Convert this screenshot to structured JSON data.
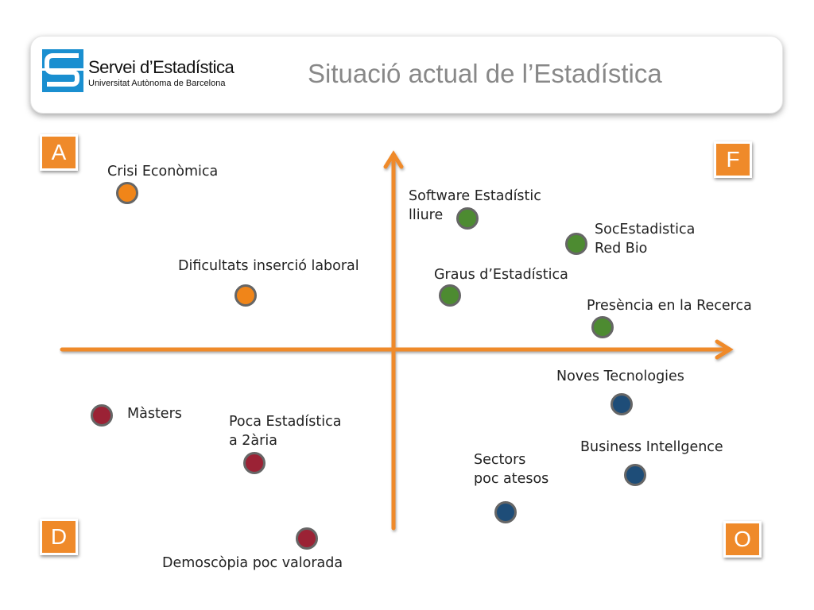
{
  "header": {
    "logo_title": "Servei d’Estadística",
    "logo_subtitle": "Universitat Autònoma de Barcelona",
    "title": "Situació actual de l’Estadística"
  },
  "quadrants": {
    "top_left": "A",
    "top_right": "F",
    "bottom_left": "D",
    "bottom_right": "O"
  },
  "items": {
    "crisi": "Crisi Econòmica",
    "dificultats": "Dificultats inserció laboral",
    "software_l1": "Software Estadístic",
    "software_l2": "lliure",
    "socest_l1": "SocEstadistica",
    "socest_l2": "Red Bio",
    "graus": "Graus d’Estadística",
    "presencia": "Presència en la Recerca",
    "noves": "Noves Tecnologies",
    "business": "Business Intellgence",
    "sectors_l1": "Sectors",
    "sectors_l2": "poc atesos",
    "masters": "Màsters",
    "poca_l1": "Poca Estadística",
    "poca_l2": "a 2ària",
    "demoscopia": "Demoscòpia poc valorada"
  },
  "colors": {
    "axis": "#ef8a2a",
    "weakness": "#f08519",
    "strength": "#4d8b31",
    "opportunity": "#1e4d78",
    "threat": "#9b2235",
    "logo_blue": "#1a8fd0"
  }
}
